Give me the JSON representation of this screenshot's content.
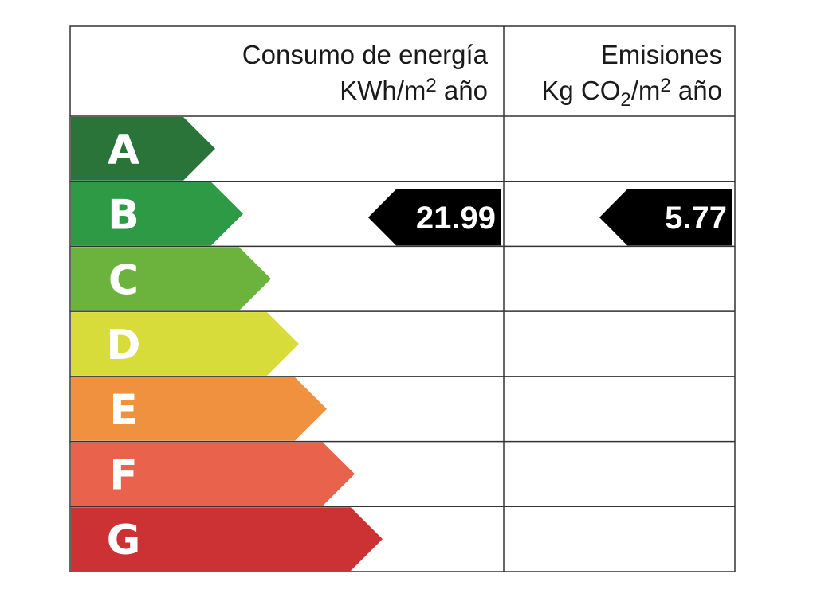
{
  "header": {
    "energy": {
      "line1": "Consumo de energía",
      "line2": [
        "KWh/m",
        "2",
        " año"
      ]
    },
    "emissions": {
      "line1": "Emisiones",
      "line2": [
        "Kg CO",
        "2",
        "/m",
        "2",
        " año"
      ]
    }
  },
  "rows": [
    {
      "grade": "A",
      "color": "#2a7339"
    },
    {
      "grade": "B",
      "color": "#2e9a45",
      "energy": 21.99,
      "emissions": 5.77
    },
    {
      "grade": "C",
      "color": "#6cb33e"
    },
    {
      "grade": "D",
      "color": "#d8dc3a"
    },
    {
      "grade": "E",
      "color": "#f0913f"
    },
    {
      "grade": "F",
      "color": "#e9634c"
    },
    {
      "grade": "G",
      "color": "#cc3234"
    }
  ]
}
